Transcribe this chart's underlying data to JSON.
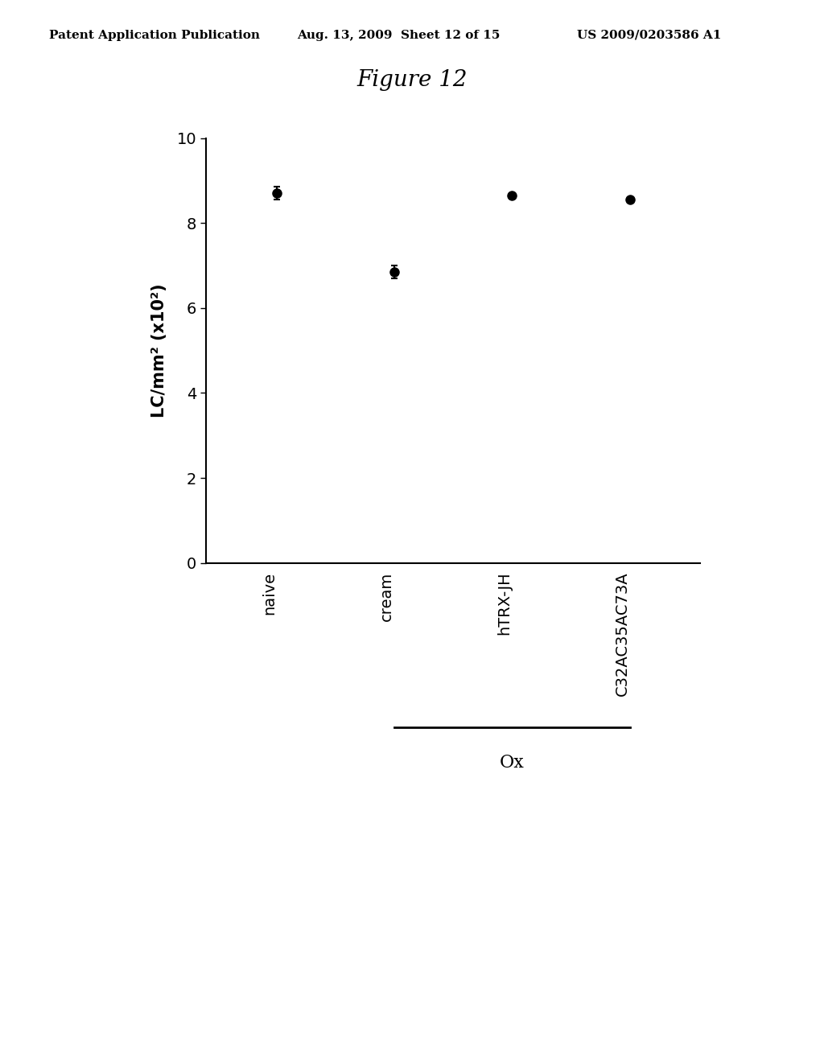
{
  "title": "Figure 12",
  "header_left": "Patent Application Publication",
  "header_center": "Aug. 13, 2009  Sheet 12 of 15",
  "header_right": "US 2009/0203586 A1",
  "categories": [
    "naive",
    "cream",
    "hTRX-JH",
    "C32AC35AC73A"
  ],
  "values": [
    8.7,
    6.85,
    8.65,
    8.55
  ],
  "errors": [
    0.15,
    0.15,
    0.0,
    0.0
  ],
  "ylabel": "LC/mm² (x10²)",
  "ylim": [
    0,
    10
  ],
  "yticks": [
    0,
    2,
    4,
    6,
    8,
    10
  ],
  "ox_label": "Ox",
  "background_color": "#ffffff",
  "marker_color": "#000000",
  "marker_size": 8,
  "fontsize_header": 11,
  "fontsize_title": 20,
  "fontsize_axis_label": 15,
  "fontsize_tick": 14,
  "fontsize_ox": 16
}
